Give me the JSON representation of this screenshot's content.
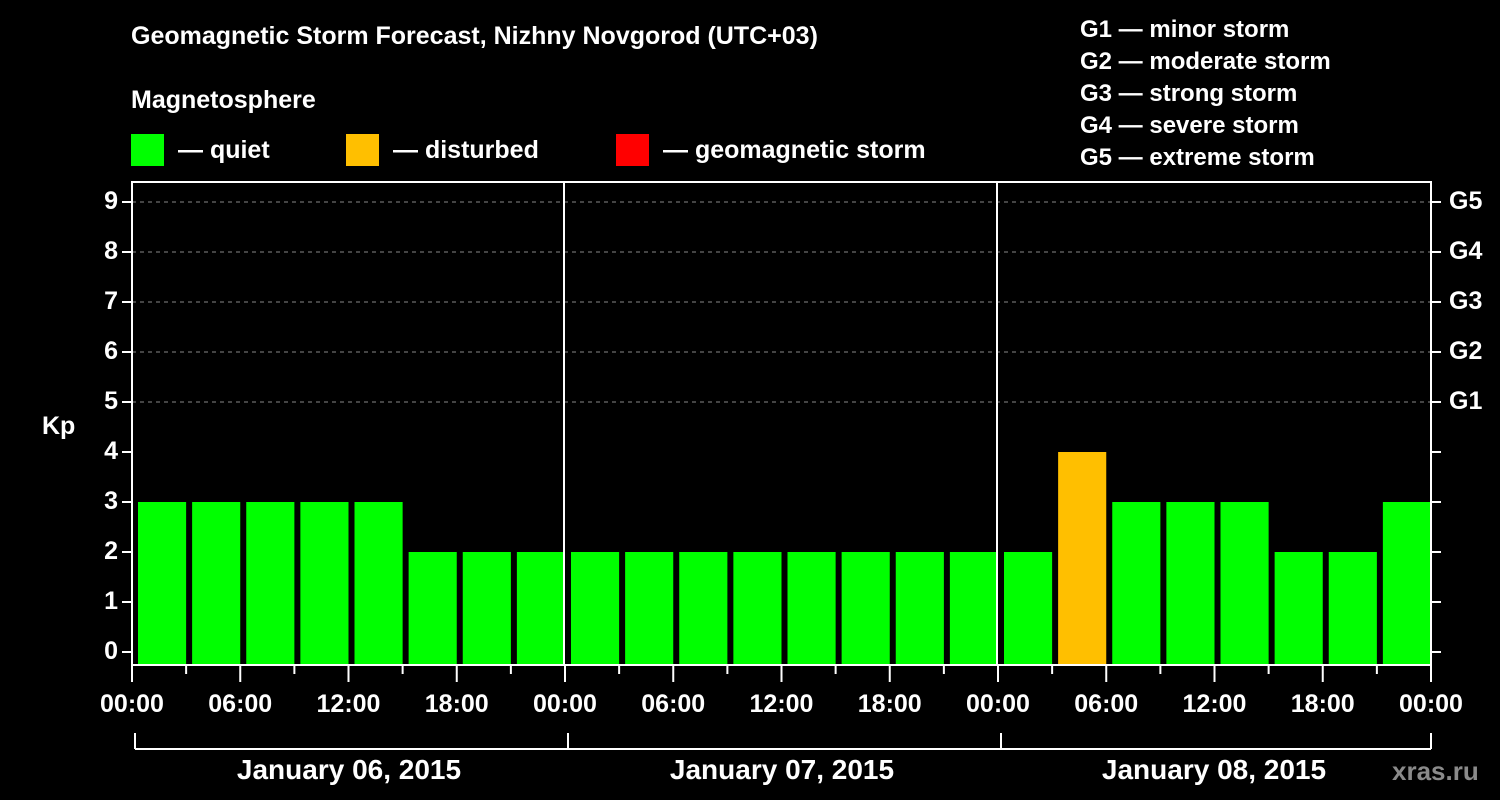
{
  "header": {
    "title": "Geomagnetic Storm Forecast, Nizhny Novgorod (UTC+03)",
    "subtitle": "Magnetosphere"
  },
  "legend": [
    {
      "label": "— quiet",
      "color": "#00ff00"
    },
    {
      "label": "— disturbed",
      "color": "#ffbf00"
    },
    {
      "label": "— geomagnetic storm",
      "color": "#ff0000"
    }
  ],
  "g_scale_legend": [
    "G1 — minor storm",
    "G2 — moderate storm",
    "G3 — strong storm",
    "G4 — severe storm",
    "G5 — extreme storm"
  ],
  "credit": "xras.ru",
  "chart_data": {
    "type": "bar",
    "title": "Geomagnetic Storm Forecast, Nizhny Novgorod (UTC+03)",
    "ylabel": "Kp",
    "xlabel": "",
    "ylim": [
      0,
      9
    ],
    "yticks": [
      "0",
      "1",
      "2",
      "3",
      "4",
      "5",
      "6",
      "7",
      "8",
      "9"
    ],
    "right_axis_labels": {
      "5": "G1",
      "6": "G2",
      "7": "G3",
      "8": "G4",
      "9": "G5"
    },
    "xtick_labels": [
      "00:00",
      "06:00",
      "12:00",
      "18:00",
      "00:00",
      "06:00",
      "12:00",
      "18:00",
      "00:00",
      "06:00",
      "12:00",
      "18:00",
      "00:00"
    ],
    "day_labels": [
      "January 06, 2015",
      "January 07, 2015",
      "January 08, 2015"
    ],
    "grid": "dashed horizontal at Kp 5-9",
    "categories": [
      "Jan 06 00-03",
      "Jan 06 03-06",
      "Jan 06 06-09",
      "Jan 06 09-12",
      "Jan 06 12-15",
      "Jan 06 15-18",
      "Jan 06 18-21",
      "Jan 06 21-24",
      "Jan 07 00-03",
      "Jan 07 03-06",
      "Jan 07 06-09",
      "Jan 07 09-12",
      "Jan 07 12-15",
      "Jan 07 15-18",
      "Jan 07 18-21",
      "Jan 07 21-24",
      "Jan 08 00-03",
      "Jan 08 03-06",
      "Jan 08 06-09",
      "Jan 08 09-12",
      "Jan 08 12-15",
      "Jan 08 15-18",
      "Jan 08 18-21",
      "Jan 08 21-24"
    ],
    "values": [
      3,
      3,
      3,
      3,
      3,
      2,
      2,
      2,
      2,
      2,
      2,
      2,
      2,
      2,
      2,
      2,
      2,
      4,
      3,
      3,
      3,
      2,
      2,
      3
    ],
    "colors": [
      "quiet",
      "quiet",
      "quiet",
      "quiet",
      "quiet",
      "quiet",
      "quiet",
      "quiet",
      "quiet",
      "quiet",
      "quiet",
      "quiet",
      "quiet",
      "quiet",
      "quiet",
      "quiet",
      "quiet",
      "disturbed",
      "quiet",
      "quiet",
      "quiet",
      "quiet",
      "quiet",
      "quiet"
    ]
  }
}
